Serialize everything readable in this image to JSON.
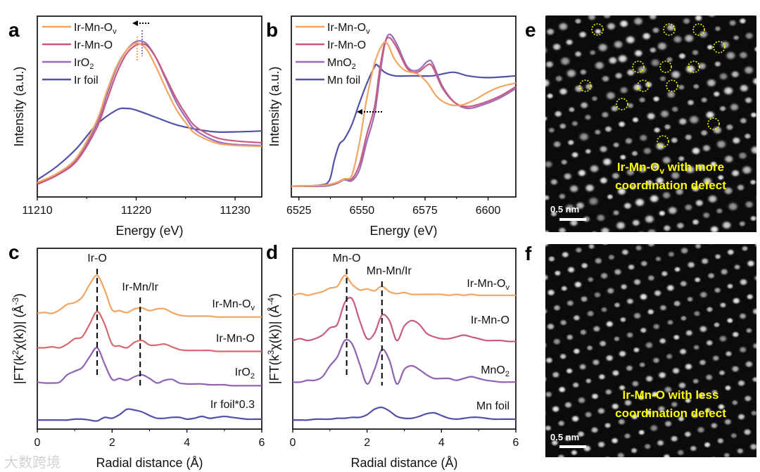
{
  "panel_letters": {
    "a": "a",
    "b": "b",
    "c": "c",
    "d": "d",
    "e": "e",
    "f": "f"
  },
  "watermark": "大数跨境",
  "chart_data": [
    {
      "panel": "a",
      "type": "line",
      "xlabel": "Energy (eV)",
      "ylabel": [
        {
          "t": "Intensity (a.u.)"
        }
      ],
      "xlim": [
        11210,
        11232.7
      ],
      "ylim": [
        0,
        1
      ],
      "xticks": [
        11210,
        11220,
        11230
      ],
      "minor_xticks": [
        11215,
        11225
      ],
      "legend": "top-left",
      "annotations": {
        "shift_arrow": "left",
        "peak_markers": [
          11220.1,
          11220.6
        ]
      },
      "series": [
        {
          "label_main": "Ir-Mn-O",
          "label_sub": "v",
          "color": "#F2A561",
          "x": [
            11210,
            11212,
            11214,
            11216,
            11217,
            11218,
            11219,
            11220,
            11221,
            11222,
            11223,
            11224,
            11225,
            11226,
            11228,
            11230,
            11232.7
          ],
          "y": [
            0.08,
            0.13,
            0.22,
            0.42,
            0.58,
            0.72,
            0.81,
            0.85,
            0.82,
            0.72,
            0.6,
            0.49,
            0.41,
            0.35,
            0.3,
            0.285,
            0.28
          ]
        },
        {
          "label_main": "Ir-Mn-O",
          "label_sub": "",
          "color": "#C85A80",
          "x": [
            11210,
            11212,
            11214,
            11216,
            11217,
            11218,
            11219,
            11220,
            11221,
            11222,
            11223,
            11224,
            11225,
            11226,
            11228,
            11230,
            11232.7
          ],
          "y": [
            0.07,
            0.12,
            0.2,
            0.38,
            0.53,
            0.68,
            0.79,
            0.84,
            0.84,
            0.77,
            0.66,
            0.55,
            0.46,
            0.39,
            0.33,
            0.31,
            0.3
          ]
        },
        {
          "label_main": "IrO",
          "label_sub": "2",
          "color": "#9B6CBA",
          "x": [
            11210,
            11212,
            11214,
            11216,
            11217,
            11218,
            11219,
            11220,
            11221,
            11222,
            11223,
            11224,
            11225,
            11226,
            11228,
            11230,
            11232.7
          ],
          "y": [
            0.075,
            0.125,
            0.21,
            0.4,
            0.56,
            0.71,
            0.81,
            0.86,
            0.85,
            0.77,
            0.65,
            0.53,
            0.44,
            0.37,
            0.31,
            0.29,
            0.285
          ]
        },
        {
          "label_main": "Ir foil",
          "label_sub": "",
          "color": "#5151A6",
          "x": [
            11210,
            11212,
            11214,
            11216,
            11218,
            11219,
            11220,
            11222,
            11224,
            11226,
            11228,
            11230,
            11232.7
          ],
          "y": [
            0.095,
            0.17,
            0.27,
            0.4,
            0.48,
            0.49,
            0.48,
            0.44,
            0.4,
            0.375,
            0.36,
            0.36,
            0.365
          ]
        }
      ]
    },
    {
      "panel": "b",
      "type": "line",
      "xlabel": "Energy (eV)",
      "ylabel": [
        {
          "t": "Intensity (a.u.)"
        }
      ],
      "xlim": [
        6522,
        6611
      ],
      "ylim": [
        0,
        1
      ],
      "xticks": [
        6525,
        6550,
        6575,
        6600
      ],
      "minor_xticks": [
        6537.5,
        6562.5,
        6587.5
      ],
      "legend": "top-left",
      "annotations": {
        "shift_arrow": "left"
      },
      "series": [
        {
          "label_main": "Ir-Mn-O",
          "label_sub": "v",
          "color": "#F2A561",
          "x": [
            6522,
            6535,
            6540,
            6543,
            6546,
            6549,
            6552,
            6555,
            6558,
            6560,
            6563,
            6567,
            6572,
            6576,
            6580,
            6585,
            6590,
            6595,
            6600,
            6605,
            6611
          ],
          "y": [
            0.06,
            0.065,
            0.08,
            0.1,
            0.12,
            0.3,
            0.55,
            0.74,
            0.84,
            0.85,
            0.76,
            0.7,
            0.68,
            0.63,
            0.55,
            0.51,
            0.51,
            0.54,
            0.58,
            0.61,
            0.63
          ]
        },
        {
          "label_main": "Ir-Mn-O",
          "label_sub": "",
          "color": "#C85A80",
          "x": [
            6522,
            6535,
            6540,
            6543,
            6546,
            6549,
            6552,
            6555,
            6557,
            6559,
            6561,
            6564,
            6568,
            6572,
            6576,
            6578,
            6582,
            6587,
            6592,
            6598,
            6605,
            6611
          ],
          "y": [
            0.06,
            0.065,
            0.08,
            0.1,
            0.1,
            0.18,
            0.35,
            0.5,
            0.7,
            0.85,
            0.88,
            0.82,
            0.71,
            0.69,
            0.73,
            0.72,
            0.6,
            0.52,
            0.5,
            0.52,
            0.56,
            0.61
          ]
        },
        {
          "label_main": "MnO",
          "label_sub": "2",
          "color": "#9B6CBA",
          "x": [
            6522,
            6535,
            6540,
            6543,
            6546,
            6549,
            6552,
            6555,
            6557,
            6559,
            6561,
            6564,
            6568,
            6572,
            6576,
            6578,
            6582,
            6587,
            6592,
            6598,
            6605,
            6611
          ],
          "y": [
            0.06,
            0.06,
            0.075,
            0.095,
            0.09,
            0.15,
            0.31,
            0.46,
            0.66,
            0.84,
            0.9,
            0.84,
            0.72,
            0.7,
            0.75,
            0.74,
            0.61,
            0.52,
            0.49,
            0.51,
            0.55,
            0.6
          ]
        },
        {
          "label_main": "Mn foil",
          "label_sub": "",
          "color": "#5151A6",
          "x": [
            6522,
            6533,
            6537,
            6539,
            6541,
            6543,
            6546,
            6549,
            6552,
            6555,
            6556,
            6559,
            6563,
            6570,
            6578,
            6586,
            6592,
            6600,
            6611
          ],
          "y": [
            0.06,
            0.065,
            0.09,
            0.2,
            0.29,
            0.32,
            0.4,
            0.52,
            0.63,
            0.72,
            0.73,
            0.69,
            0.67,
            0.67,
            0.67,
            0.69,
            0.67,
            0.66,
            0.67
          ]
        }
      ]
    },
    {
      "panel": "c",
      "type": "line",
      "xlabel": "Radial distance (Å)",
      "ylabel": [
        {
          "t": "|FT(k"
        },
        {
          "t": "2",
          "sup": true
        },
        {
          "t": "χ(k))| (Å"
        },
        {
          "t": "-3",
          "sup": true
        },
        {
          "t": ")"
        }
      ],
      "xlim": [
        0,
        6
      ],
      "ylim": [
        0,
        1
      ],
      "xticks": [
        0,
        2,
        4,
        6
      ],
      "minor_xticks": [
        1,
        3,
        5
      ],
      "peaks": [
        {
          "label": "Ir-O",
          "x": 1.6
        },
        {
          "label": "Ir-Mn/Ir",
          "x": 2.75
        }
      ],
      "x": [
        0,
        0.2,
        0.4,
        0.6,
        0.8,
        1.0,
        1.2,
        1.4,
        1.6,
        1.8,
        2.0,
        2.2,
        2.4,
        2.6,
        2.8,
        3.0,
        3.2,
        3.4,
        3.6,
        3.8,
        4.0,
        4.2,
        4.4,
        4.6,
        4.8,
        5.0,
        5.2,
        5.4,
        5.6,
        5.8,
        6.0
      ],
      "series": [
        {
          "label_main": "Ir-Mn-O",
          "label_sub": "v",
          "color": "#F2A561",
          "y": [
            0.64,
            0.645,
            0.64,
            0.66,
            0.69,
            0.7,
            0.73,
            0.8,
            0.85,
            0.77,
            0.66,
            0.655,
            0.645,
            0.665,
            0.67,
            0.655,
            0.665,
            0.665,
            0.645,
            0.63,
            0.625,
            0.625,
            0.625,
            0.625,
            0.62,
            0.62,
            0.62,
            0.62,
            0.62,
            0.62,
            0.62
          ]
        },
        {
          "label_main": "Ir-Mn-O",
          "label_sub": "",
          "color": "#D76872",
          "y": [
            0.45,
            0.45,
            0.455,
            0.45,
            0.47,
            0.5,
            0.51,
            0.58,
            0.65,
            0.58,
            0.47,
            0.46,
            0.45,
            0.48,
            0.49,
            0.465,
            0.465,
            0.47,
            0.455,
            0.44,
            0.435,
            0.435,
            0.435,
            0.435,
            0.43,
            0.43,
            0.43,
            0.43,
            0.43,
            0.43,
            0.43
          ]
        },
        {
          "label_main": "IrO",
          "label_sub": "2",
          "color": "#8E62B0",
          "y": [
            0.26,
            0.255,
            0.255,
            0.26,
            0.3,
            0.32,
            0.34,
            0.4,
            0.45,
            0.36,
            0.275,
            0.28,
            0.27,
            0.29,
            0.3,
            0.28,
            0.255,
            0.27,
            0.275,
            0.255,
            0.25,
            0.25,
            0.25,
            0.245,
            0.245,
            0.245,
            0.24,
            0.24,
            0.24,
            0.24,
            0.24
          ]
        },
        {
          "label_main": "Ir foil*0.3",
          "label_sub": "",
          "color": "#5151A6",
          "y": [
            0.05,
            0.05,
            0.05,
            0.05,
            0.05,
            0.055,
            0.055,
            0.05,
            0.045,
            0.065,
            0.06,
            0.08,
            0.11,
            0.105,
            0.095,
            0.075,
            0.06,
            0.06,
            0.065,
            0.065,
            0.055,
            0.06,
            0.07,
            0.06,
            0.065,
            0.07,
            0.065,
            0.06,
            0.055,
            0.055,
            0.055
          ]
        }
      ]
    },
    {
      "panel": "d",
      "type": "line",
      "xlabel": "Radial distance (Å)",
      "ylabel": [
        {
          "t": "|FT(k"
        },
        {
          "t": "3",
          "sup": true
        },
        {
          "t": "χ(k))| (Å"
        },
        {
          "t": "-4",
          "sup": true
        },
        {
          "t": ")"
        }
      ],
      "xlim": [
        0,
        6
      ],
      "ylim": [
        0,
        1
      ],
      "xticks": [
        0,
        2,
        4,
        6
      ],
      "minor_xticks": [
        1,
        3,
        5
      ],
      "peaks": [
        {
          "label": "Mn-O",
          "x": 1.45
        },
        {
          "label": "Mn-Mn/Ir",
          "x": 2.4
        }
      ],
      "x": [
        0,
        0.2,
        0.4,
        0.6,
        0.8,
        1.0,
        1.2,
        1.4,
        1.6,
        1.8,
        2.0,
        2.2,
        2.4,
        2.6,
        2.8,
        3.0,
        3.2,
        3.4,
        3.6,
        3.8,
        4.0,
        4.2,
        4.4,
        4.6,
        4.8,
        5.0,
        5.2,
        5.4,
        5.6,
        5.8,
        6.0
      ],
      "series": [
        {
          "label_main": "Ir-Mn-O",
          "label_sub": "v",
          "color": "#F2A561",
          "y": [
            0.74,
            0.75,
            0.74,
            0.75,
            0.76,
            0.78,
            0.79,
            0.85,
            0.8,
            0.77,
            0.775,
            0.765,
            0.79,
            0.76,
            0.75,
            0.755,
            0.745,
            0.745,
            0.745,
            0.745,
            0.745,
            0.74,
            0.745,
            0.74,
            0.745,
            0.74,
            0.74,
            0.74,
            0.74,
            0.74,
            0.74
          ]
        },
        {
          "label_main": "Ir-Mn-O",
          "label_sub": "",
          "color": "#C85A80",
          "y": [
            0.49,
            0.5,
            0.49,
            0.5,
            0.52,
            0.56,
            0.58,
            0.7,
            0.72,
            0.6,
            0.5,
            0.53,
            0.63,
            0.6,
            0.49,
            0.57,
            0.6,
            0.58,
            0.53,
            0.51,
            0.5,
            0.5,
            0.51,
            0.52,
            0.51,
            0.5,
            0.49,
            0.49,
            0.49,
            0.485,
            0.485
          ]
        },
        {
          "label_main": "MnO",
          "label_sub": "2",
          "color": "#8E62B0",
          "y": [
            0.26,
            0.26,
            0.27,
            0.27,
            0.29,
            0.35,
            0.4,
            0.49,
            0.47,
            0.36,
            0.25,
            0.33,
            0.44,
            0.38,
            0.25,
            0.33,
            0.35,
            0.33,
            0.3,
            0.28,
            0.28,
            0.28,
            0.27,
            0.28,
            0.29,
            0.28,
            0.27,
            0.265,
            0.26,
            0.26,
            0.26
          ]
        },
        {
          "label_main": "Mn foil",
          "label_sub": "",
          "color": "#5151A6",
          "y": [
            0.05,
            0.05,
            0.05,
            0.055,
            0.055,
            0.055,
            0.06,
            0.06,
            0.065,
            0.065,
            0.08,
            0.11,
            0.12,
            0.1,
            0.07,
            0.06,
            0.06,
            0.07,
            0.085,
            0.09,
            0.075,
            0.06,
            0.055,
            0.06,
            0.065,
            0.065,
            0.06,
            0.055,
            0.055,
            0.055,
            0.055
          ]
        }
      ]
    }
  ],
  "tem": {
    "e": {
      "caption_line1_main": "Ir-Mn-O",
      "caption_line1_sub": "v",
      "caption_line1_rest": " with more",
      "caption_line2": "coordination defect",
      "scale_bar": "0.5 nm",
      "defect_marker_color": "#ffff00"
    },
    "f": {
      "caption_line1": "Ir-Mn-O with less",
      "caption_line2": "coordination defect",
      "scale_bar": "0.5 nm"
    }
  }
}
